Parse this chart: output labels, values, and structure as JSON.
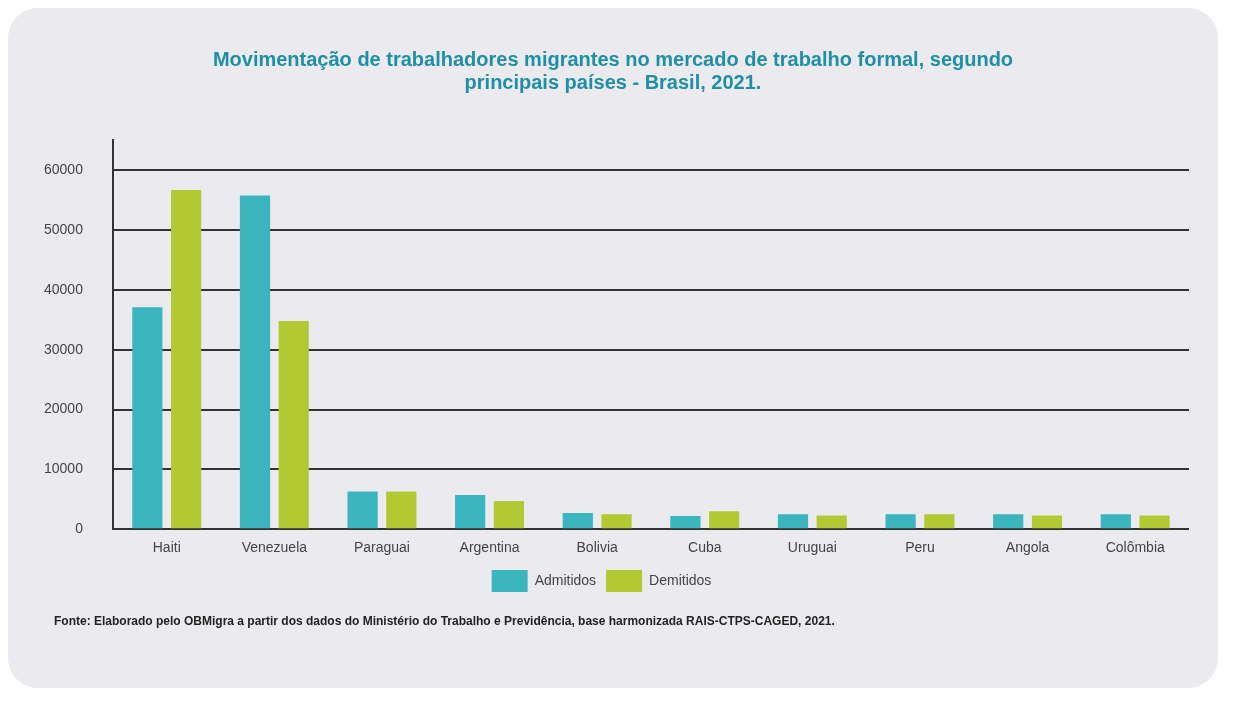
{
  "chart_data": {
    "type": "bar",
    "title": "Movimentação de trabalhadores migrantes no mercado de trabalho formal, segundo principais países - Brasil, 2021.",
    "categories": [
      "Haiti",
      "Venezuela",
      "Paraguai",
      "Argentina",
      "Bolivia",
      "Cuba",
      "Uruguai",
      "Peru",
      "Angola",
      "Colômbia"
    ],
    "series": [
      {
        "name": "Admitidos",
        "color": "#3bb5be",
        "values": [
          37100,
          55800,
          6300,
          5700,
          2700,
          2200,
          2500,
          2500,
          2500,
          2500
        ]
      },
      {
        "name": "Demitidos",
        "color": "#b3c934",
        "values": [
          56700,
          34800,
          6300,
          4700,
          2500,
          3000,
          2300,
          2500,
          2300,
          2300
        ]
      }
    ],
    "ylim": [
      0,
      65000
    ],
    "yticks": [
      0,
      10000,
      20000,
      30000,
      40000,
      50000,
      60000
    ],
    "grid": "y",
    "legend": "bottom",
    "annotations": [
      "Fonte: Elaborado pelo OBMigra a partir dos dados do Ministério do Trabalho e Previdência, base harmonizada RAIS-CTPS-CAGED, 2021."
    ]
  }
}
